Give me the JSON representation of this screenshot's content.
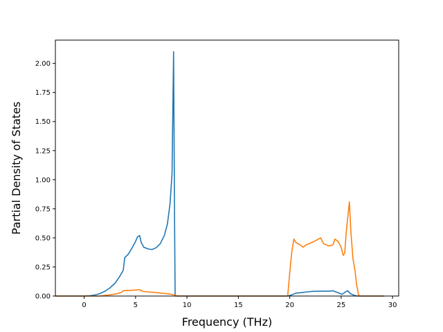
{
  "chart_data": {
    "type": "line",
    "title": "",
    "xlabel": "Frequency (THz)",
    "ylabel": "Partial Density of States",
    "xlim": [
      -2.8,
      30.6
    ],
    "ylim": [
      0,
      2.2
    ],
    "x_ticks": [
      0,
      5,
      10,
      15,
      20,
      25,
      30
    ],
    "y_ticks": [
      0.0,
      0.25,
      0.5,
      0.75,
      1.0,
      1.25,
      1.5,
      1.75,
      2.0
    ],
    "x_tick_labels": [
      "0",
      "5",
      "10",
      "15",
      "20",
      "25",
      "30"
    ],
    "y_tick_labels": [
      "0.00",
      "0.25",
      "0.50",
      "0.75",
      "1.00",
      "1.25",
      "1.50",
      "1.75",
      "2.00"
    ],
    "grid": false,
    "series": [
      {
        "color": "#1f77b4",
        "points": [
          [
            -2.8,
            0
          ],
          [
            0,
            0
          ],
          [
            0.5,
            0.002
          ],
          [
            1.0,
            0.008
          ],
          [
            1.5,
            0.02
          ],
          [
            2.0,
            0.04
          ],
          [
            2.5,
            0.07
          ],
          [
            3.0,
            0.11
          ],
          [
            3.4,
            0.16
          ],
          [
            3.8,
            0.22
          ],
          [
            3.95,
            0.33
          ],
          [
            4.3,
            0.36
          ],
          [
            4.7,
            0.42
          ],
          [
            5.0,
            0.47
          ],
          [
            5.2,
            0.51
          ],
          [
            5.4,
            0.52
          ],
          [
            5.55,
            0.46
          ],
          [
            5.8,
            0.42
          ],
          [
            6.2,
            0.405
          ],
          [
            6.6,
            0.4
          ],
          [
            7.0,
            0.415
          ],
          [
            7.4,
            0.45
          ],
          [
            7.8,
            0.52
          ],
          [
            8.1,
            0.62
          ],
          [
            8.35,
            0.79
          ],
          [
            8.55,
            1.05
          ],
          [
            8.7,
            2.1
          ],
          [
            8.8,
            0.6
          ],
          [
            8.85,
            0
          ],
          [
            19.8,
            0
          ],
          [
            20.2,
            0.01
          ],
          [
            20.6,
            0.025
          ],
          [
            21.2,
            0.03
          ],
          [
            21.6,
            0.035
          ],
          [
            22.2,
            0.04
          ],
          [
            23.0,
            0.042
          ],
          [
            23.8,
            0.042
          ],
          [
            24.2,
            0.045
          ],
          [
            24.5,
            0.035
          ],
          [
            24.8,
            0.025
          ],
          [
            25.1,
            0.015
          ],
          [
            25.5,
            0.04
          ],
          [
            25.65,
            0.045
          ],
          [
            25.9,
            0.02
          ],
          [
            26.3,
            0.005
          ],
          [
            26.6,
            0
          ],
          [
            29.2,
            0
          ]
        ]
      },
      {
        "color": "#ff7f0e",
        "points": [
          [
            -2.8,
            0
          ],
          [
            1.5,
            0
          ],
          [
            2.5,
            0.01
          ],
          [
            3.2,
            0.02
          ],
          [
            3.6,
            0.03
          ],
          [
            3.8,
            0.045
          ],
          [
            4.2,
            0.048
          ],
          [
            4.8,
            0.05
          ],
          [
            5.4,
            0.055
          ],
          [
            5.7,
            0.04
          ],
          [
            6.3,
            0.035
          ],
          [
            7.2,
            0.028
          ],
          [
            8.0,
            0.02
          ],
          [
            8.5,
            0.015
          ],
          [
            8.9,
            0.005
          ],
          [
            9.1,
            0
          ],
          [
            19.8,
            0
          ],
          [
            20.0,
            0.2
          ],
          [
            20.2,
            0.38
          ],
          [
            20.4,
            0.49
          ],
          [
            20.6,
            0.46
          ],
          [
            21.0,
            0.44
          ],
          [
            21.3,
            0.42
          ],
          [
            21.6,
            0.44
          ],
          [
            22.0,
            0.455
          ],
          [
            22.5,
            0.475
          ],
          [
            23.0,
            0.5
          ],
          [
            23.3,
            0.45
          ],
          [
            23.8,
            0.43
          ],
          [
            24.2,
            0.44
          ],
          [
            24.4,
            0.49
          ],
          [
            24.7,
            0.47
          ],
          [
            25.0,
            0.42
          ],
          [
            25.2,
            0.35
          ],
          [
            25.35,
            0.37
          ],
          [
            25.5,
            0.55
          ],
          [
            25.65,
            0.68
          ],
          [
            25.8,
            0.81
          ],
          [
            25.95,
            0.55
          ],
          [
            26.15,
            0.32
          ],
          [
            26.35,
            0.22
          ],
          [
            26.5,
            0.1
          ],
          [
            26.7,
            0.01
          ],
          [
            26.8,
            0
          ],
          [
            29.2,
            0
          ]
        ]
      }
    ]
  }
}
